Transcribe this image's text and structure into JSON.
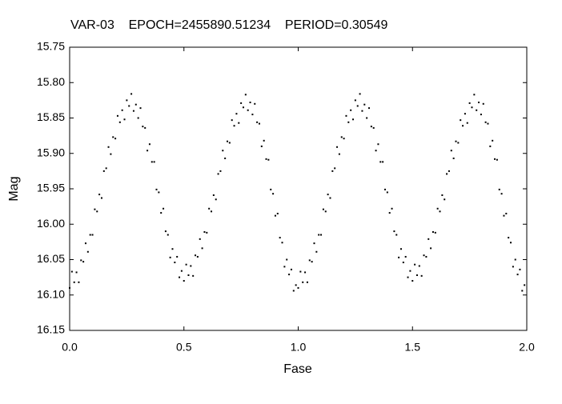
{
  "chart_data": {
    "type": "scatter",
    "title": "VAR-03    EPOCH=2455890.51234    PERIOD=0.30549",
    "xlabel": "Fase",
    "ylabel": "Mag",
    "color": "#000000",
    "yaxis_inverted": true,
    "grid": false,
    "xlim": [
      0,
      2
    ],
    "xticks": [
      {
        "value": 0,
        "label": "0.0"
      },
      0.5,
      {
        "value": 1,
        "label": "1.0"
      },
      1.5,
      {
        "value": 2,
        "label": "2.0"
      }
    ],
    "ylim": [
      15.75,
      16.15
    ],
    "yticks": [
      15.75,
      {
        "value": 15.8,
        "label": "15.80"
      },
      15.85,
      {
        "value": 15.9,
        "label": "15.90"
      },
      15.95,
      {
        "value": 16,
        "label": "16.00"
      },
      16.05,
      {
        "value": 16.1,
        "label": "16.10"
      },
      16.15
    ],
    "x": [
      0.0,
      0.01,
      0.02,
      0.03,
      0.04,
      0.05,
      0.06,
      0.07,
      0.08,
      0.09,
      0.1,
      0.11,
      0.12,
      0.13,
      0.14,
      0.15,
      0.16,
      0.17,
      0.18,
      0.19,
      0.2,
      0.21,
      0.22,
      0.23,
      0.24,
      0.25,
      0.26,
      0.27,
      0.28,
      0.29,
      0.3,
      0.31,
      0.32,
      0.33,
      0.34,
      0.35,
      0.36,
      0.37,
      0.38,
      0.39,
      0.4,
      0.41,
      0.42,
      0.43,
      0.44,
      0.45,
      0.46,
      0.47,
      0.48,
      0.49,
      0.5,
      0.51,
      0.52,
      0.53,
      0.54,
      0.55,
      0.56,
      0.57,
      0.58,
      0.59,
      0.6,
      0.61,
      0.62,
      0.63,
      0.64,
      0.65,
      0.66,
      0.67,
      0.68,
      0.69,
      0.7,
      0.71,
      0.72,
      0.73,
      0.74,
      0.75,
      0.76,
      0.77,
      0.78,
      0.79,
      0.8,
      0.81,
      0.82,
      0.83,
      0.84,
      0.85,
      0.86,
      0.87,
      0.88,
      0.89,
      0.9,
      0.91,
      0.92,
      0.93,
      0.94,
      0.95,
      0.96,
      0.97,
      0.98,
      0.99,
      1.0,
      1.01,
      1.02,
      1.03,
      1.04,
      1.05,
      1.06,
      1.07,
      1.08,
      1.09,
      1.1,
      1.11,
      1.12,
      1.13,
      1.14,
      1.15,
      1.16,
      1.17,
      1.18,
      1.19,
      1.2,
      1.21,
      1.22,
      1.23,
      1.24,
      1.25,
      1.26,
      1.27,
      1.28,
      1.29,
      1.3,
      1.31,
      1.32,
      1.33,
      1.34,
      1.35,
      1.36,
      1.37,
      1.38,
      1.39,
      1.4,
      1.41,
      1.42,
      1.43,
      1.44,
      1.45,
      1.46,
      1.47,
      1.48,
      1.49,
      1.5,
      1.51,
      1.52,
      1.53,
      1.54,
      1.55,
      1.56,
      1.57,
      1.58,
      1.59,
      1.6,
      1.61,
      1.62,
      1.63,
      1.64,
      1.65,
      1.66,
      1.67,
      1.68,
      1.69,
      1.7,
      1.71,
      1.72,
      1.73,
      1.74,
      1.75,
      1.76,
      1.77,
      1.78,
      1.79,
      1.8,
      1.81,
      1.82,
      1.83,
      1.84,
      1.85,
      1.86,
      1.87,
      1.88,
      1.89,
      1.9,
      1.91,
      1.92,
      1.93,
      1.94,
      1.95,
      1.96,
      1.97,
      1.98,
      1.99
    ],
    "values": [
      16.09,
      16.067,
      16.082,
      16.068,
      16.082,
      16.051,
      16.053,
      16.027,
      16.039,
      16.015,
      16.015,
      15.979,
      15.982,
      15.958,
      15.963,
      15.925,
      15.921,
      15.891,
      15.901,
      15.877,
      15.879,
      15.847,
      15.856,
      15.839,
      15.852,
      15.825,
      15.833,
      15.816,
      15.84,
      15.831,
      15.85,
      15.836,
      15.862,
      15.864,
      15.896,
      15.887,
      15.912,
      15.912,
      15.951,
      15.955,
      15.984,
      15.978,
      16.01,
      16.015,
      16.047,
      16.035,
      16.054,
      16.046,
      16.075,
      16.066,
      16.08,
      16.057,
      16.072,
      16.059,
      16.073,
      16.044,
      16.046,
      16.021,
      16.034,
      16.011,
      16.012,
      15.978,
      15.982,
      15.959,
      15.965,
      15.929,
      15.925,
      15.896,
      15.907,
      15.883,
      15.885,
      15.853,
      15.861,
      15.844,
      15.857,
      15.829,
      15.835,
      15.817,
      15.839,
      15.828,
      15.845,
      15.83,
      15.856,
      15.858,
      15.89,
      15.882,
      15.908,
      15.909,
      15.951,
      15.957,
      15.988,
      15.985,
      16.019,
      16.026,
      16.06,
      16.05,
      16.071,
      16.064,
      16.094,
      16.086,
      16.09,
      16.067,
      16.082,
      16.068,
      16.082,
      16.051,
      16.053,
      16.027,
      16.039,
      16.015,
      16.015,
      15.979,
      15.982,
      15.958,
      15.963,
      15.925,
      15.921,
      15.891,
      15.901,
      15.877,
      15.879,
      15.847,
      15.856,
      15.839,
      15.852,
      15.825,
      15.833,
      15.816,
      15.84,
      15.831,
      15.85,
      15.836,
      15.862,
      15.864,
      15.896,
      15.887,
      15.912,
      15.912,
      15.951,
      15.955,
      15.984,
      15.978,
      16.01,
      16.015,
      16.047,
      16.035,
      16.054,
      16.046,
      16.075,
      16.066,
      16.08,
      16.057,
      16.072,
      16.059,
      16.073,
      16.044,
      16.046,
      16.021,
      16.034,
      16.011,
      16.012,
      15.978,
      15.982,
      15.959,
      15.965,
      15.929,
      15.925,
      15.896,
      15.907,
      15.883,
      15.885,
      15.853,
      15.861,
      15.844,
      15.857,
      15.829,
      15.835,
      15.817,
      15.839,
      15.828,
      15.845,
      15.83,
      15.856,
      15.858,
      15.89,
      15.882,
      15.908,
      15.909,
      15.951,
      15.957,
      15.988,
      15.985,
      16.019,
      16.026,
      16.06,
      16.05,
      16.071,
      16.064,
      16.094,
      16.086
    ]
  }
}
